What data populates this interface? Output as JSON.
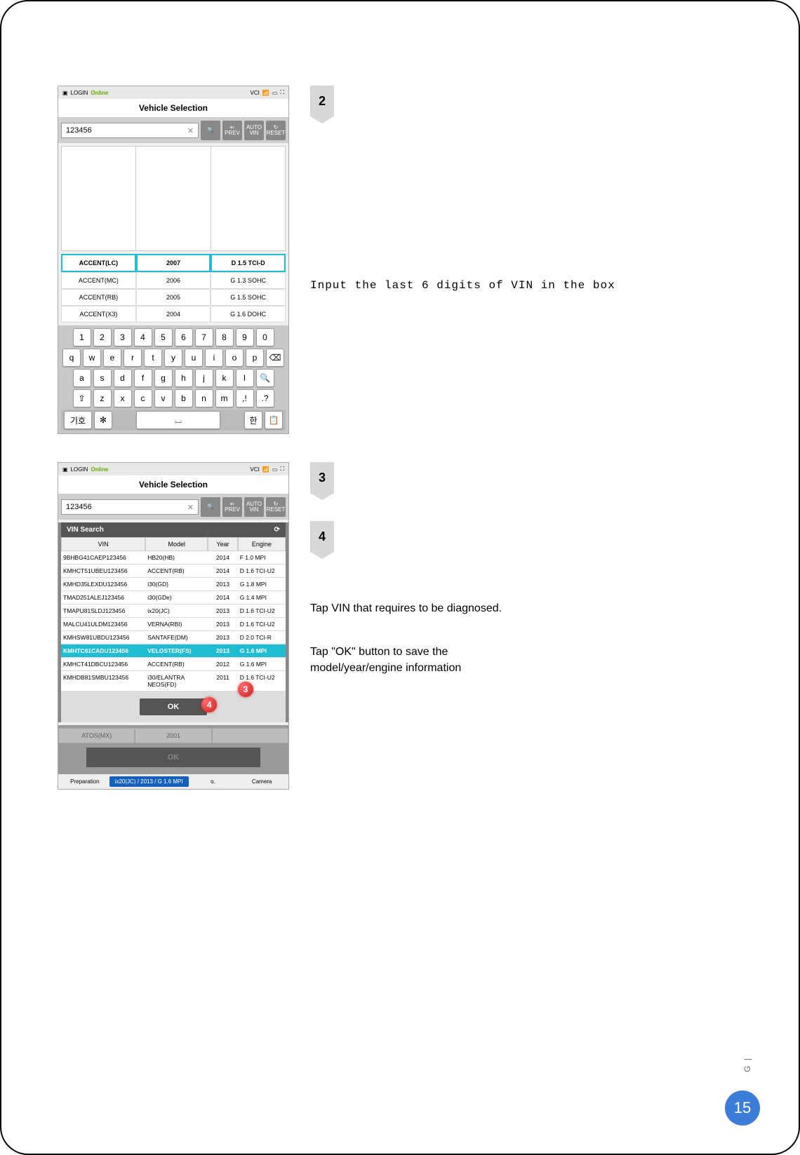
{
  "page_number": "15",
  "side_label": "G |",
  "step2": {
    "marker": "2",
    "status": {
      "login": "LOGIN",
      "online": "Online",
      "vci": "VCI"
    },
    "title": "Vehicle Selection",
    "vin_input": "123456",
    "toolbar": {
      "prev": "PREV",
      "auto_vin_1": "AUTO",
      "auto_vin_2": "ViN",
      "reset": "RESET"
    },
    "selection_rows": [
      {
        "model": "ACCENT(LC)",
        "year": "2007",
        "engine": "D 1.5 TCI-D",
        "highlighted": true
      },
      {
        "model": "ACCENT(MC)",
        "year": "2006",
        "engine": "G 1.3 SOHC",
        "highlighted": false
      },
      {
        "model": "ACCENT(RB)",
        "year": "2005",
        "engine": "G 1.5 SOHC",
        "highlighted": false
      },
      {
        "model": "ACCENT(X3)",
        "year": "2004",
        "engine": "G 1.6 DOHC",
        "highlighted": false
      }
    ],
    "keyboard": {
      "row1": [
        "1",
        "2",
        "3",
        "4",
        "5",
        "6",
        "7",
        "8",
        "9",
        "0"
      ],
      "row2": [
        "q",
        "w",
        "e",
        "r",
        "t",
        "y",
        "u",
        "i",
        "o",
        "p",
        "⌫"
      ],
      "row3": [
        "a",
        "s",
        "d",
        "f",
        "g",
        "h",
        "j",
        "k",
        "l",
        "🔍"
      ],
      "row4": [
        "⇧",
        "z",
        "x",
        "c",
        "v",
        "b",
        "n",
        "m",
        ",!",
        ".?"
      ],
      "bottom_left": "기호",
      "gear": "✻"
    },
    "instruction": "Input the last 6 digits of VIN in the box"
  },
  "step3_4": {
    "markers": [
      "3",
      "4"
    ],
    "status": {
      "login": "LOGIN",
      "online": "Online",
      "vci": "VCI"
    },
    "title": "Vehicle Selection",
    "vin_input": "123456",
    "modal_title": "VIN Search",
    "table_head": {
      "vin": "VIN",
      "model": "Model",
      "year": "Year",
      "engine": "Engine"
    },
    "rows": [
      {
        "vin": "9BHBG41CAEP123456",
        "model": "HB20(HB)",
        "year": "2014",
        "engine": "F 1.0 MPI",
        "selected": false
      },
      {
        "vin": "KMHCT51UBEU123456",
        "model": "ACCENT(RB)",
        "year": "2014",
        "engine": "D 1.6 TCI-U2",
        "selected": false
      },
      {
        "vin": "KMHD35LEXDU123456",
        "model": "i30(GD)",
        "year": "2013",
        "engine": "G 1.8 MPI",
        "selected": false
      },
      {
        "vin": "TMAD251ALEJ123456",
        "model": "i30(GDe)",
        "year": "2014",
        "engine": "G 1.4 MPI",
        "selected": false
      },
      {
        "vin": "TMAPU81SLDJ123456",
        "model": "ix20(JC)",
        "year": "2013",
        "engine": "D 1.6 TCI-U2",
        "selected": false
      },
      {
        "vin": "MALCU41ULDM123456",
        "model": "VERNA(RBI)",
        "year": "2013",
        "engine": "D 1.6 TCI-U2",
        "selected": false
      },
      {
        "vin": "KMHSW81UBDU123456",
        "model": "SANTAFE(DM)",
        "year": "2013",
        "engine": "D 2.0 TCI-R",
        "selected": false
      },
      {
        "vin": "KMHTC61CADU123456",
        "model": "VELOSTER(FS)",
        "year": "2013",
        "engine": "G 1.6 MPI",
        "selected": true
      },
      {
        "vin": "KMHCT41DBCU123456",
        "model": "ACCENT(RB)",
        "year": "2012",
        "engine": "G 1.6 MPI",
        "selected": false
      },
      {
        "vin": "KMHDB81SMBU123456",
        "model": "i30/ELANTRA NEOS(FD)",
        "year": "2011",
        "engine": "D 1.6 TCI-U2",
        "selected": false
      }
    ],
    "ok": "OK",
    "dimmed": {
      "model": "ATOS(MX)",
      "year": "2001"
    },
    "big_ok": "OK",
    "footer": {
      "left": "Preparation",
      "pill": "ix20(JC) / 2013 / G 1.6 MPI",
      "mid": "o.",
      "right": "Camera"
    },
    "callouts": {
      "c3": "3",
      "c4": "4"
    },
    "instruction3": "Tap VIN that requires to be diagnosed.",
    "instruction4": "Tap \"OK\" button to save the model/year/engine information"
  }
}
